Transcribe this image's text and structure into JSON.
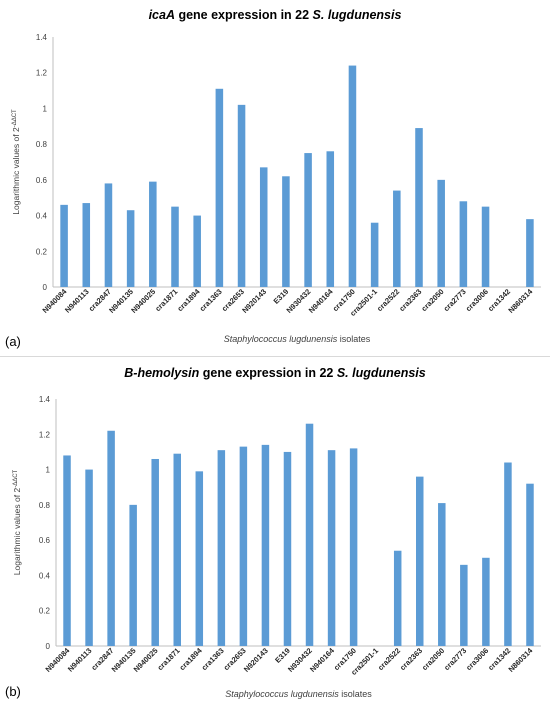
{
  "chart_data": [
    {
      "type": "bar",
      "panel_label": "(a)",
      "title_gene": "icaA",
      "title_rest": " gene expression in 22 ",
      "title_species": "S. lugdunensis",
      "ylabel": "Logarithmic values of 2",
      "ylabel_superscript": "-ΔΔCT",
      "xlabel_italic": "Staphylococcus lugdunensis",
      "xlabel_rest": " isolates",
      "ylim": [
        0,
        1.4
      ],
      "yticks": [
        "0",
        "0.2",
        "0.4",
        "0.6",
        "0.8",
        "1",
        "1.2",
        "1.4"
      ],
      "grid": false,
      "bar_color": "#5b9bd5",
      "categories": [
        "N940084",
        "N940113",
        "cra2847",
        "N940135",
        "N940025",
        "cra1871",
        "cra1894",
        "cra1363",
        "cra2653",
        "N920143",
        "E319",
        "N930432",
        "N940164",
        "cra1750",
        "cra2501-1",
        "cra2522",
        "cra2363",
        "cra2050",
        "cra2773",
        "cra3006",
        "cra1342",
        "N860314"
      ],
      "values": [
        0.46,
        0.47,
        0.58,
        0.43,
        0.59,
        0.45,
        0.4,
        1.11,
        1.02,
        0.67,
        0.62,
        0.75,
        0.76,
        1.24,
        0.36,
        0.54,
        0.89,
        0.6,
        0.48,
        0.45,
        0,
        0.38
      ]
    },
    {
      "type": "bar",
      "panel_label": "(b)",
      "title_gene": "B-hemolysin",
      "title_rest": " gene expression in 22 ",
      "title_species": "S. lugdunensis",
      "ylabel": "Logarithmic values of 2",
      "ylabel_superscript": "-ΔΔCT",
      "xlabel_italic": "Staphylococcus lugdunensis",
      "xlabel_rest": " isolates",
      "ylim": [
        0,
        1.4
      ],
      "yticks": [
        "0",
        "0.2",
        "0.4",
        "0.6",
        "0.8",
        "1",
        "1.2",
        "1.4"
      ],
      "grid": false,
      "bar_color": "#5b9bd5",
      "categories": [
        "N940084",
        "N940113",
        "cra2847",
        "N940135",
        "N940025",
        "cra1871",
        "cra1894",
        "cra1363",
        "cra2653",
        "N920143",
        "E319",
        "N930432",
        "N940164",
        "cra1750",
        "cra2501-1",
        "cra2522",
        "cra2363",
        "cra2050",
        "cra2773",
        "cra3006",
        "cra1342",
        "N860314"
      ],
      "values": [
        1.08,
        1.0,
        1.22,
        0.8,
        1.06,
        1.09,
        0.99,
        1.11,
        1.13,
        1.14,
        1.1,
        1.26,
        1.11,
        1.12,
        0,
        0.54,
        0.96,
        0.81,
        0.46,
        0.5,
        1.04,
        0.92
      ]
    }
  ]
}
